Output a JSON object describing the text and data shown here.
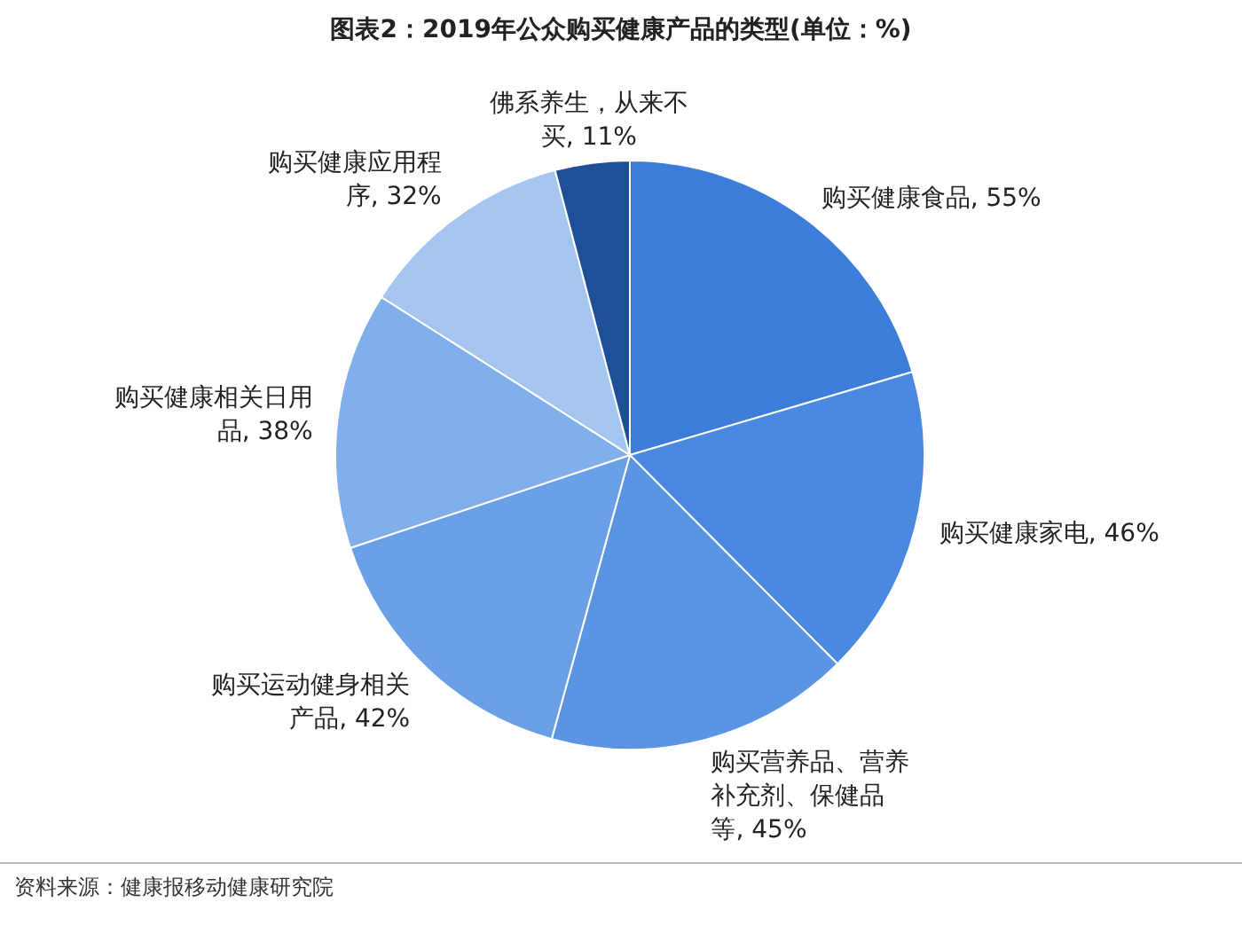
{
  "chart_data": {
    "type": "pie",
    "title": "图表2：2019年公众购买健康产品的类型(单位：%)",
    "categories": [
      "购买健康食品",
      "购买健康家电",
      "购买营养品、营养补充剂、保健品等",
      "购买运动健身相关产品",
      "购买健康相关日用品",
      "购买健康应用程序",
      "佛系养生，从来不买"
    ],
    "values": [
      55,
      46,
      45,
      42,
      38,
      32,
      11
    ],
    "value_labels": [
      "55%",
      "46%",
      "45%",
      "42%",
      "38%",
      "32%",
      "11%"
    ],
    "colors": [
      "#3b7dd8",
      "#4a89df",
      "#5a94e2",
      "#6a9fe6",
      "#80afea",
      "#a3c5f0",
      "#1f4f97"
    ],
    "legend": false,
    "annotations": [
      "资料来源：健康报移动健康研究院"
    ]
  }
}
